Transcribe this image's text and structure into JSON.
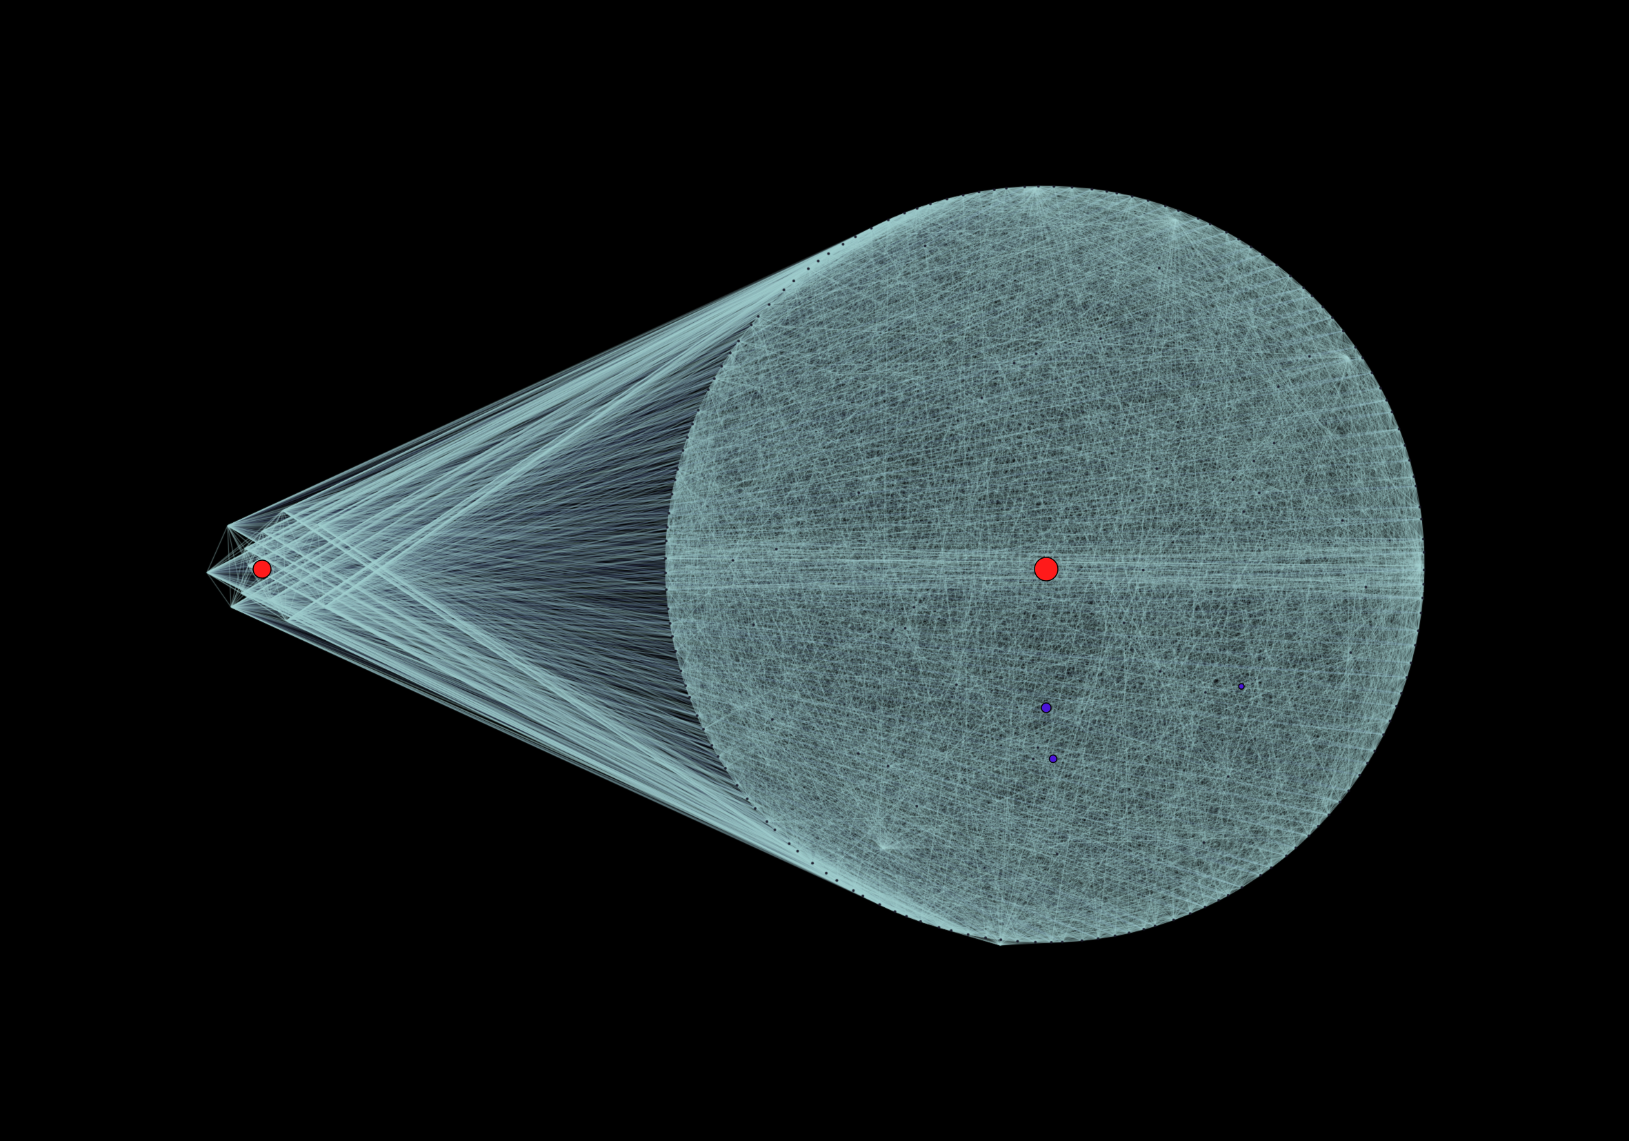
{
  "background": "#000000",
  "edge_color": "#a6d2d2",
  "edge_dark_color": "#2a3350",
  "node_border_color": "#000000",
  "node_colors": {
    "hub": "#ff1a1a",
    "secondary": "#4a14d8",
    "minor": "#1a1a2a"
  },
  "graph": {
    "type": "network",
    "clusters": [
      "left-fan",
      "right-circle"
    ],
    "hubs": 2,
    "secondary_nodes": 3
  }
}
